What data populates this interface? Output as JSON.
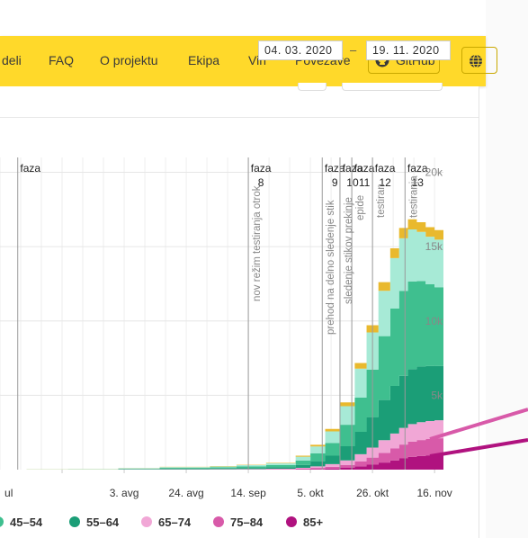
{
  "nav": {
    "items": [
      "deli",
      "FAQ",
      "O projektu",
      "Ekipa",
      "Viri",
      "Povezave"
    ],
    "github_label": "GitHub",
    "language_icon": "globe-icon"
  },
  "date_range": {
    "from": "04. 03. 2020",
    "separator": "–",
    "to": "19. 11. 2020"
  },
  "chart_data": {
    "type": "area",
    "stacked": true,
    "x_tick_labels": [
      "ul",
      "3. avg",
      "24. avg",
      "14. sep",
      "5. okt",
      "26. okt",
      "16. nov"
    ],
    "y_tick_labels": [
      "5k",
      "10k",
      "15k",
      "20k"
    ],
    "ylim": [
      0,
      21000
    ],
    "phases": [
      {
        "label": "faza",
        "number": "",
        "x": "2020-06-28"
      },
      {
        "label": "faza",
        "number": "8",
        "x": "2020-09-14"
      },
      {
        "label": "faza",
        "number": "9",
        "x": "2020-10-09"
      },
      {
        "label": "faza",
        "number": "10",
        "x": "2020-10-15"
      },
      {
        "label": "faza",
        "number": "11",
        "x": "2020-10-19"
      },
      {
        "label": "faza",
        "number": "12",
        "x": "2020-10-26"
      },
      {
        "label": "faza",
        "number": "13",
        "x": "2020-11-06"
      }
    ],
    "annotations": [
      {
        "text": "nov režim testiranja otrok",
        "x": "2020-09-14"
      },
      {
        "text": "prehod na delno sledenje stik",
        "x": "2020-10-09"
      },
      {
        "text": "sledenje stikov prekinje",
        "x": "2020-10-15"
      },
      {
        "text": "epide",
        "x": "2020-10-19"
      },
      {
        "text": "testiran",
        "x": "2020-10-26"
      },
      {
        "text": "testiranja",
        "x": "2020-11-06"
      }
    ],
    "x": [
      "2020-07-01",
      "2020-07-15",
      "2020-08-01",
      "2020-08-15",
      "2020-09-01",
      "2020-09-10",
      "2020-09-20",
      "2020-09-30",
      "2020-10-05",
      "2020-10-10",
      "2020-10-15",
      "2020-10-20",
      "2020-10-24",
      "2020-10-28",
      "2020-11-01",
      "2020-11-04",
      "2020-11-07",
      "2020-11-10",
      "2020-11-13",
      "2020-11-16",
      "2020-11-19"
    ],
    "series": [
      {
        "name": "85+",
        "color": "#b0127f",
        "values": [
          0,
          0,
          5,
          5,
          5,
          5,
          10,
          20,
          40,
          70,
          120,
          220,
          330,
          480,
          620,
          760,
          860,
          920,
          960,
          990,
          1000
        ]
      },
      {
        "name": "75-84",
        "color": "#d85aa9",
        "values": [
          0,
          0,
          5,
          10,
          10,
          15,
          20,
          40,
          70,
          120,
          200,
          340,
          480,
          650,
          800,
          930,
          1020,
          1070,
          1100,
          1120,
          1120
        ]
      },
      {
        "name": "65-74",
        "color": "#f1a7d6",
        "values": [
          0,
          0,
          5,
          10,
          15,
          20,
          30,
          60,
          110,
          180,
          300,
          480,
          670,
          850,
          1010,
          1120,
          1180,
          1200,
          1210,
          1210,
          1200
        ]
      },
      {
        "name": "55-64",
        "color": "#1b9e77",
        "values": [
          0,
          5,
          20,
          40,
          50,
          70,
          100,
          200,
          350,
          570,
          950,
          1500,
          2050,
          2700,
          3200,
          3500,
          3700,
          3750,
          3700,
          3650,
          3600
        ]
      },
      {
        "name": "45-54",
        "color": "#3fbf8f",
        "values": [
          5,
          10,
          30,
          60,
          80,
          100,
          140,
          290,
          520,
          850,
          1450,
          2300,
          3200,
          4300,
          5200,
          5700,
          5900,
          5750,
          5500,
          5300,
          5200
        ]
      },
      {
        "name": "",
        "color": "#a7ead6",
        "values": [
          10,
          15,
          30,
          50,
          60,
          90,
          130,
          260,
          470,
          780,
          1250,
          1950,
          2500,
          3050,
          3400,
          3550,
          3500,
          3300,
          3200,
          3200,
          3250
        ]
      },
      {
        "name": "",
        "color": "#e9b92e",
        "values": [
          5,
          5,
          10,
          15,
          20,
          25,
          35,
          70,
          110,
          170,
          250,
          380,
          480,
          580,
          660,
          700,
          680,
          650,
          640,
          640,
          650
        ]
      }
    ]
  },
  "legend": [
    {
      "label": "45–54",
      "color": "#3fbf8f"
    },
    {
      "label": "55–64",
      "color": "#1b9e77"
    },
    {
      "label": "65–74",
      "color": "#f1a7d6"
    },
    {
      "label": "75–84",
      "color": "#d85aa9"
    },
    {
      "label": "85+",
      "color": "#b0127f"
    }
  ]
}
